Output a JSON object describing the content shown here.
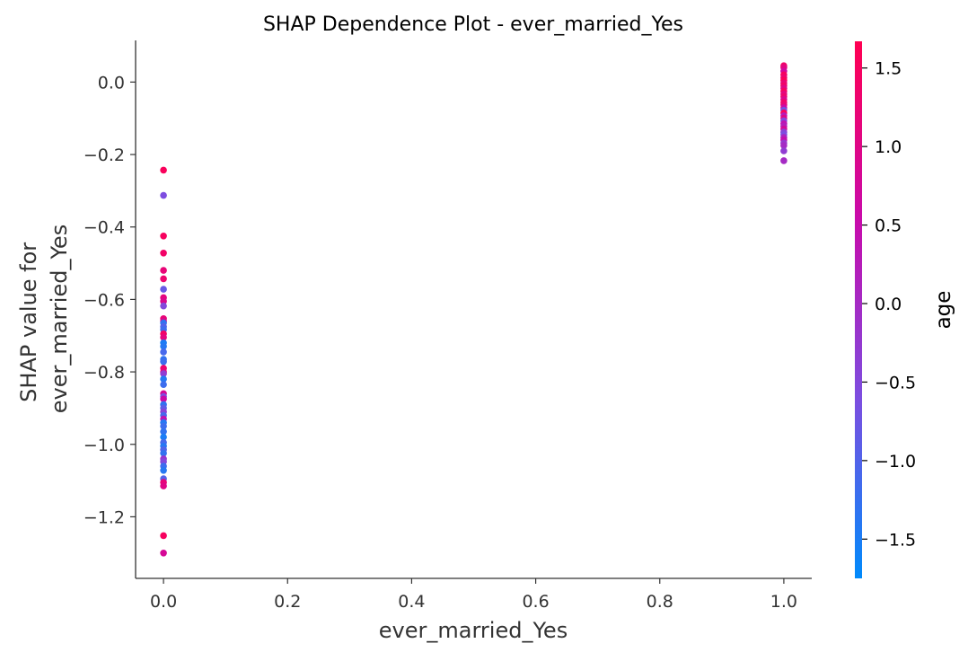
{
  "chart_data": {
    "type": "scatter",
    "title": "SHAP Dependence Plot - ever_married_Yes",
    "xlabel": "ever_married_Yes",
    "ylabel": [
      "SHAP value for",
      "ever_married_Yes"
    ],
    "xlim": [
      -0.045,
      1.045
    ],
    "ylim": [
      -1.37,
      0.115
    ],
    "xticks": [
      0.0,
      0.2,
      0.4,
      0.6,
      0.8,
      1.0
    ],
    "xtick_labels": [
      "0.0",
      "0.2",
      "0.4",
      "0.6",
      "0.8",
      "1.0"
    ],
    "yticks": [
      0.0,
      -0.2,
      -0.4,
      -0.6,
      -0.8,
      -1.0,
      -1.2
    ],
    "ytick_labels": [
      "0.0",
      "−0.2",
      "−0.4",
      "−0.6",
      "−0.8",
      "−1.0",
      "−1.2"
    ],
    "grid": false,
    "colorbar": {
      "label": "age",
      "range": [
        -1.75,
        1.67
      ],
      "ticks": [
        1.5,
        1.0,
        0.5,
        0.0,
        -0.5,
        -1.0,
        -1.5
      ],
      "tick_labels": [
        "1.5",
        "1.0",
        "0.5",
        "0.0",
        "−0.5",
        "−1.0",
        "−1.5"
      ],
      "colors": [
        "#008afb",
        "#7c4ee0",
        "#c80bab",
        "#ff0052"
      ]
    },
    "points": [
      {
        "x": 0,
        "y": -0.243,
        "c": 1.55
      },
      {
        "x": 0,
        "y": -0.313,
        "c": -0.6
      },
      {
        "x": 0,
        "y": -0.425,
        "c": 1.5
      },
      {
        "x": 0,
        "y": -0.472,
        "c": 1.4
      },
      {
        "x": 0,
        "y": -0.52,
        "c": 1.2
      },
      {
        "x": 0,
        "y": -0.543,
        "c": 1.3
      },
      {
        "x": 0,
        "y": -0.572,
        "c": -0.8
      },
      {
        "x": 0,
        "y": -0.595,
        "c": 1.1
      },
      {
        "x": 0,
        "y": -0.605,
        "c": 0.9
      },
      {
        "x": 0,
        "y": -0.618,
        "c": -0.5
      },
      {
        "x": 0,
        "y": -0.653,
        "c": 1.2
      },
      {
        "x": 0,
        "y": -0.66,
        "c": 1.0
      },
      {
        "x": 0,
        "y": -0.665,
        "c": -1.3
      },
      {
        "x": 0,
        "y": -0.675,
        "c": -1.0
      },
      {
        "x": 0,
        "y": -0.683,
        "c": -1.2
      },
      {
        "x": 0,
        "y": -0.695,
        "c": 1.4
      },
      {
        "x": 0,
        "y": -0.705,
        "c": 1.1
      },
      {
        "x": 0,
        "y": -0.72,
        "c": -1.5
      },
      {
        "x": 0,
        "y": -0.73,
        "c": -1.4
      },
      {
        "x": 0,
        "y": -0.745,
        "c": -1.1
      },
      {
        "x": 0,
        "y": -0.765,
        "c": -1.3
      },
      {
        "x": 0,
        "y": -0.772,
        "c": -1.2
      },
      {
        "x": 0,
        "y": -0.79,
        "c": 1.3
      },
      {
        "x": 0,
        "y": -0.8,
        "c": 1.1
      },
      {
        "x": 0,
        "y": -0.805,
        "c": -0.3
      },
      {
        "x": 0,
        "y": -0.82,
        "c": -1.4
      },
      {
        "x": 0,
        "y": -0.835,
        "c": -1.2
      },
      {
        "x": 0,
        "y": -0.86,
        "c": 0.8
      },
      {
        "x": 0,
        "y": -0.868,
        "c": -0.6
      },
      {
        "x": 0,
        "y": -0.875,
        "c": 0.6
      },
      {
        "x": 0,
        "y": -0.89,
        "c": -1.3
      },
      {
        "x": 0,
        "y": -0.9,
        "c": -0.9
      },
      {
        "x": 0,
        "y": -0.91,
        "c": -0.4
      },
      {
        "x": 0,
        "y": -0.92,
        "c": -1.1
      },
      {
        "x": 0,
        "y": -0.93,
        "c": 0.4
      },
      {
        "x": 0,
        "y": -0.94,
        "c": -1.4
      },
      {
        "x": 0,
        "y": -0.95,
        "c": -1.2
      },
      {
        "x": 0,
        "y": -0.965,
        "c": -1.3
      },
      {
        "x": 0,
        "y": -0.98,
        "c": -1.5
      },
      {
        "x": 0,
        "y": -0.995,
        "c": -1.1
      },
      {
        "x": 0,
        "y": -1.005,
        "c": -1.4
      },
      {
        "x": 0,
        "y": -1.015,
        "c": -1.0
      },
      {
        "x": 0,
        "y": -1.025,
        "c": -1.3
      },
      {
        "x": 0,
        "y": -1.04,
        "c": -0.2
      },
      {
        "x": 0,
        "y": -1.048,
        "c": -0.5
      },
      {
        "x": 0,
        "y": -1.06,
        "c": -1.2
      },
      {
        "x": 0,
        "y": -1.072,
        "c": -1.4
      },
      {
        "x": 0,
        "y": -1.095,
        "c": -1.0
      },
      {
        "x": 0,
        "y": -1.105,
        "c": 1.2
      },
      {
        "x": 0,
        "y": -1.115,
        "c": 1.0
      },
      {
        "x": 0,
        "y": -1.252,
        "c": 1.5
      },
      {
        "x": 0,
        "y": -1.3,
        "c": 0.8
      },
      {
        "x": 1,
        "y": 0.045,
        "c": 1.4
      },
      {
        "x": 1,
        "y": 0.04,
        "c": 1.1
      },
      {
        "x": 1,
        "y": 0.03,
        "c": 0.7
      },
      {
        "x": 1,
        "y": 0.02,
        "c": 1.5
      },
      {
        "x": 1,
        "y": 0.012,
        "c": 1.3
      },
      {
        "x": 1,
        "y": 0.005,
        "c": 1.6
      },
      {
        "x": 1,
        "y": -0.003,
        "c": 1.2
      },
      {
        "x": 1,
        "y": -0.01,
        "c": 1.4
      },
      {
        "x": 1,
        "y": -0.017,
        "c": 1.0
      },
      {
        "x": 1,
        "y": -0.025,
        "c": 1.5
      },
      {
        "x": 1,
        "y": -0.033,
        "c": 1.1
      },
      {
        "x": 1,
        "y": -0.04,
        "c": 1.3
      },
      {
        "x": 1,
        "y": -0.048,
        "c": 0.9
      },
      {
        "x": 1,
        "y": -0.056,
        "c": 1.4
      },
      {
        "x": 1,
        "y": -0.063,
        "c": 1.2
      },
      {
        "x": 1,
        "y": -0.071,
        "c": 0.6
      },
      {
        "x": 1,
        "y": -0.078,
        "c": -0.7
      },
      {
        "x": 1,
        "y": -0.085,
        "c": 1.5
      },
      {
        "x": 1,
        "y": -0.093,
        "c": 0.3
      },
      {
        "x": 1,
        "y": -0.1,
        "c": 1.0
      },
      {
        "x": 1,
        "y": -0.107,
        "c": -0.5
      },
      {
        "x": 1,
        "y": -0.115,
        "c": 0.4
      },
      {
        "x": 1,
        "y": -0.122,
        "c": 0.2
      },
      {
        "x": 1,
        "y": -0.13,
        "c": 0.8
      },
      {
        "x": 1,
        "y": -0.138,
        "c": -0.4
      },
      {
        "x": 1,
        "y": -0.145,
        "c": -0.6
      },
      {
        "x": 1,
        "y": -0.153,
        "c": 0.1
      },
      {
        "x": 1,
        "y": -0.16,
        "c": 0.5
      },
      {
        "x": 1,
        "y": -0.168,
        "c": -0.2
      },
      {
        "x": 1,
        "y": -0.175,
        "c": 0.0
      },
      {
        "x": 1,
        "y": -0.19,
        "c": -0.3
      },
      {
        "x": 1,
        "y": -0.217,
        "c": 0.0
      }
    ]
  }
}
